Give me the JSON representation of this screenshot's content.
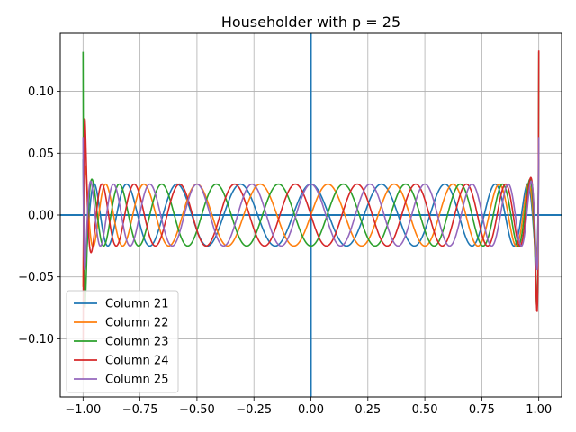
{
  "chart_data": {
    "type": "line",
    "title": "Householder with p = 25",
    "xlabel": "",
    "ylabel": "",
    "xlim": [
      -1.1,
      1.1
    ],
    "ylim": [
      -0.147,
      0.147
    ],
    "xticks": [
      -1.0,
      -0.75,
      -0.5,
      -0.25,
      0.0,
      0.25,
      0.5,
      0.75,
      1.0
    ],
    "xtick_labels": [
      "−1.00",
      "−0.75",
      "−0.50",
      "−0.25",
      "0.00",
      "0.25",
      "0.50",
      "0.75",
      "1.00"
    ],
    "yticks": [
      -0.1,
      -0.05,
      0.0,
      0.05,
      0.1
    ],
    "ytick_labels": [
      "−0.10",
      "−0.05",
      "0.00",
      "0.05",
      "0.10"
    ],
    "grid": true,
    "legend_position": "lower-left",
    "reference_lines": {
      "vertical_x": 0.0,
      "horizontal_y": 0.0,
      "color": "#1f77b4"
    },
    "series": [
      {
        "name": "Column 21",
        "color": "#1f77b4",
        "degree": 20,
        "norm": 0.025,
        "endpoint_peak": 0.045
      },
      {
        "name": "Column 22",
        "color": "#ff7f0e",
        "degree": 21,
        "norm": 0.025,
        "endpoint_peak": 0.058
      },
      {
        "name": "Column 23",
        "color": "#2ca02c",
        "degree": 22,
        "norm": 0.025,
        "endpoint_peak": 0.132
      },
      {
        "name": "Column 24",
        "color": "#d62728",
        "degree": 23,
        "norm": 0.025,
        "endpoint_peak": 0.133
      },
      {
        "name": "Column 25",
        "color": "#9467bd",
        "degree": 24,
        "norm": 0.025,
        "endpoint_peak": 0.063
      }
    ]
  }
}
